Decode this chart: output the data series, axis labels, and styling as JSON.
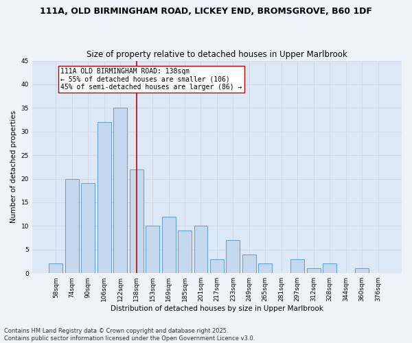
{
  "title1": "111A, OLD BIRMINGHAM ROAD, LICKEY END, BROMSGROVE, B60 1DF",
  "title2": "Size of property relative to detached houses in Upper Marlbrook",
  "xlabel": "Distribution of detached houses by size in Upper Marlbrook",
  "ylabel": "Number of detached properties",
  "bar_labels": [
    "58sqm",
    "74sqm",
    "90sqm",
    "106sqm",
    "122sqm",
    "138sqm",
    "153sqm",
    "169sqm",
    "185sqm",
    "201sqm",
    "217sqm",
    "233sqm",
    "249sqm",
    "265sqm",
    "281sqm",
    "297sqm",
    "312sqm",
    "328sqm",
    "344sqm",
    "360sqm",
    "376sqm"
  ],
  "bar_values": [
    2,
    20,
    19,
    32,
    35,
    22,
    10,
    12,
    9,
    10,
    3,
    7,
    4,
    2,
    0,
    3,
    1,
    2,
    0,
    1,
    0
  ],
  "bar_color": "#c5d8ed",
  "bar_edge_color": "#5b9bd5",
  "highlight_bar_index": 5,
  "highlight_line_color": "#c00000",
  "annotation_text": "111A OLD BIRMINGHAM ROAD: 138sqm\n← 55% of detached houses are smaller (106)\n45% of semi-detached houses are larger (86) →",
  "annotation_box_color": "#ffffff",
  "annotation_box_edge_color": "#c00000",
  "ylim": [
    0,
    45
  ],
  "yticks": [
    0,
    5,
    10,
    15,
    20,
    25,
    30,
    35,
    40,
    45
  ],
  "grid_color": "#d0d8e8",
  "background_color": "#dce8f5",
  "fig_background_color": "#eef3fa",
  "footer_text": "Contains HM Land Registry data © Crown copyright and database right 2025.\nContains public sector information licensed under the Open Government Licence v3.0.",
  "title_fontsize": 9,
  "subtitle_fontsize": 8.5,
  "axis_label_fontsize": 7.5,
  "tick_fontsize": 6.5,
  "annotation_fontsize": 7,
  "footer_fontsize": 6
}
